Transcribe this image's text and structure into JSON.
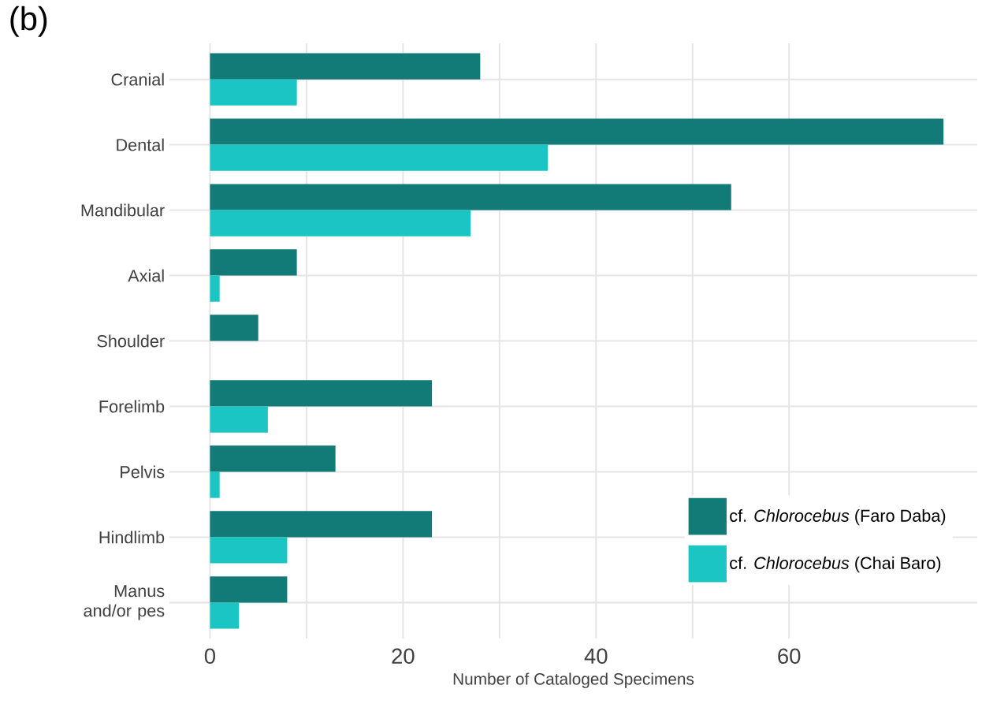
{
  "chart_data": {
    "type": "bar",
    "orientation": "horizontal",
    "categories": [
      "Cranial",
      "Dental",
      "Mandibular",
      "Axial",
      "Shoulder",
      "Forelimb",
      "Pelvis",
      "Hindlimb",
      "Manus and/or pes"
    ],
    "series": [
      {
        "name": "cf. *Chlorocebus* (Faro Daba)",
        "color": "#127a77",
        "values": [
          28,
          76,
          54,
          9,
          5,
          23,
          13,
          23,
          8
        ]
      },
      {
        "name": "cf. *Chlorocebus* (Chai Baro)",
        "color": "#1bc5c3",
        "values": [
          9,
          35,
          27,
          1,
          0,
          6,
          1,
          8,
          3
        ]
      }
    ],
    "xlim": [
      -4.2,
      79.5
    ],
    "xticks": [
      0,
      20,
      40,
      60
    ],
    "xlabel": "Number of Cataloged Specimens",
    "grid": true,
    "legend": "bottom right",
    "annotations": [
      "(b)"
    ]
  }
}
